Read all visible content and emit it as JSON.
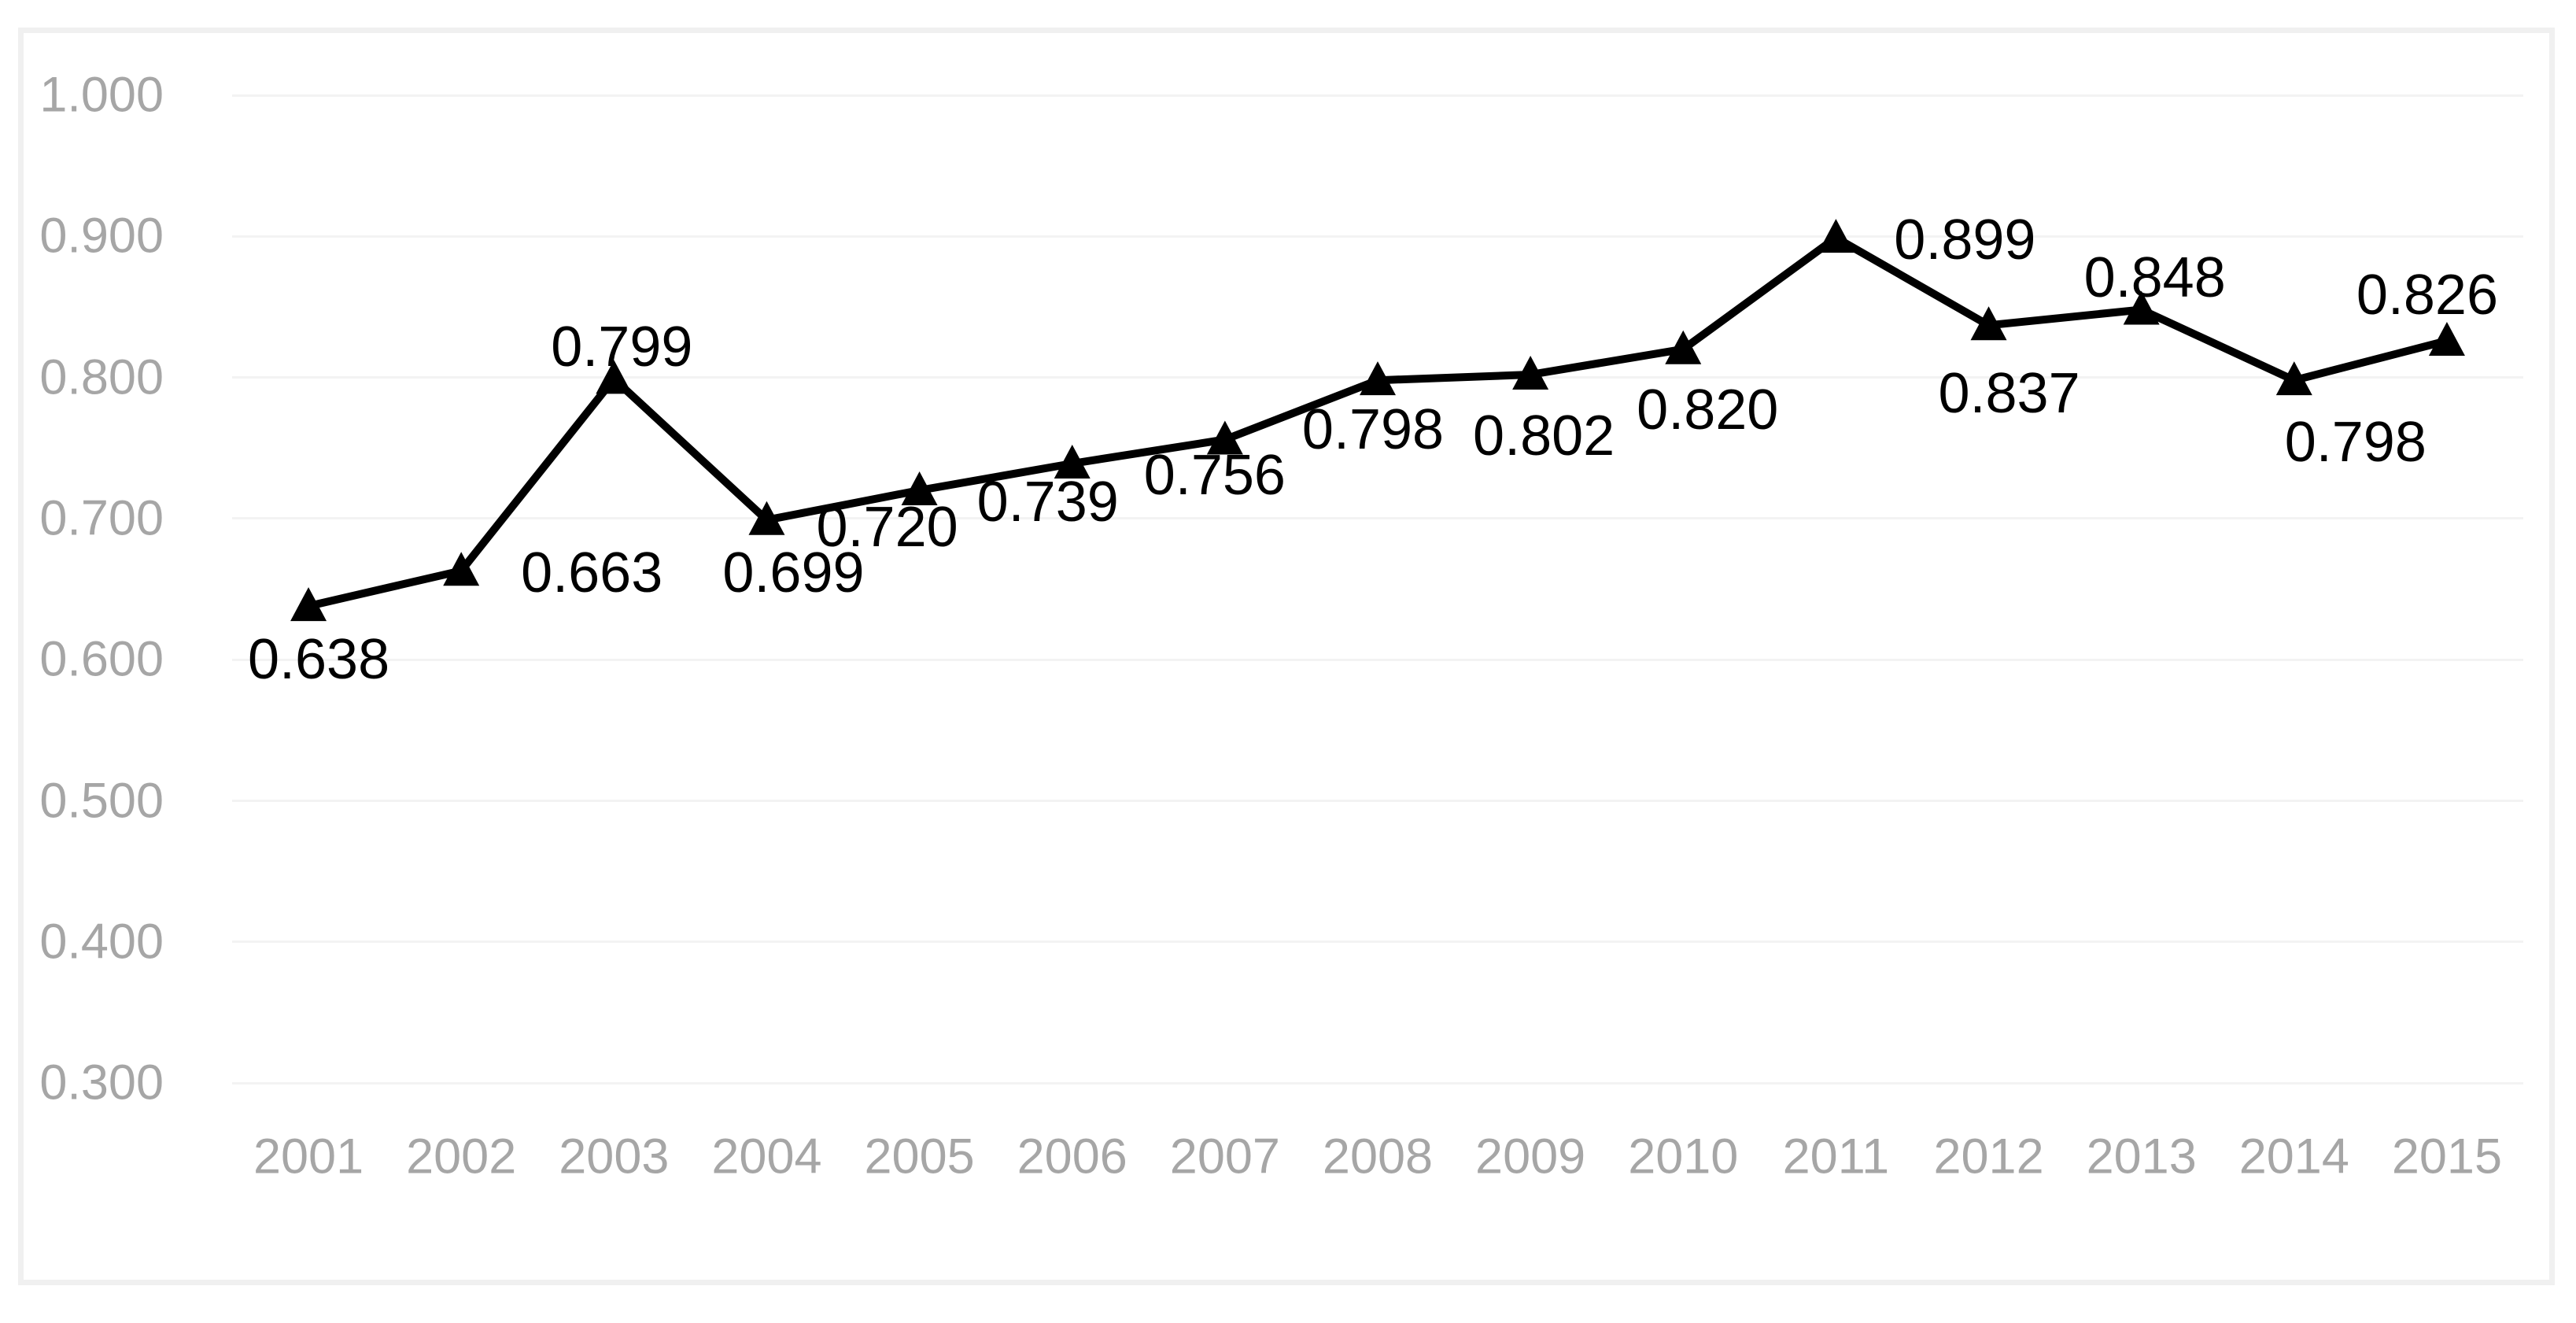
{
  "chart_data": {
    "type": "line",
    "title": "",
    "xlabel": "",
    "ylabel": "",
    "categories": [
      "2001",
      "2002",
      "2003",
      "2004",
      "2005",
      "2006",
      "2007",
      "2008",
      "2009",
      "2010",
      "2011",
      "2012",
      "2013",
      "2014",
      "2015"
    ],
    "series": [
      {
        "name": "",
        "values": [
          0.638,
          0.663,
          0.799,
          0.699,
          0.72,
          0.739,
          0.756,
          0.798,
          0.802,
          0.82,
          0.899,
          0.837,
          0.848,
          0.798,
          0.826
        ],
        "point_labels": [
          "0.638",
          "0.663",
          "0.799",
          "0.699",
          "0.720",
          "0.739",
          "0.756",
          "0.798",
          "0.802",
          "0.820",
          "0.899",
          "0.837",
          "0.848",
          "0.798",
          "0.826"
        ]
      }
    ],
    "ylim": [
      0.3,
      1.0
    ],
    "y_tick_step": 0.1,
    "y_tick_labels": [
      "1.000",
      "0.900",
      "0.800",
      "0.700",
      "0.600",
      "0.500",
      "0.400",
      "0.300"
    ],
    "grid": "horizontal",
    "legend_position": "none",
    "marker": "triangle-up",
    "colors": {
      "line": "#000000",
      "marker": "#000000",
      "data_label": "#000000",
      "axis_label": "#a6a6a6",
      "gridline": "#f3f3f3",
      "plot_border": "#f0f0f0",
      "background": "#ffffff"
    }
  }
}
